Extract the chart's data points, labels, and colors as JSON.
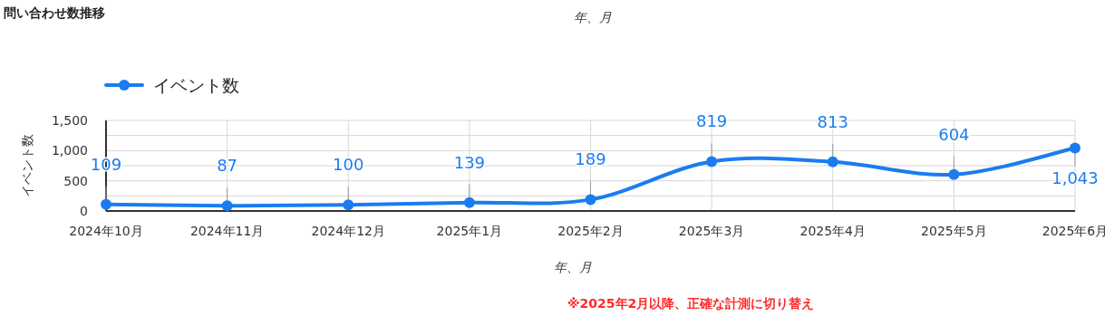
{
  "chart_data": {
    "type": "line",
    "title": "問い合わせ数推移",
    "xlabel": "年、月",
    "ylabel": "イベント数",
    "annotations": [
      "年、月",
      "※2025年2月以降、正確な計測に切り替え"
    ],
    "categories": [
      "2024年10月",
      "2024年11月",
      "2024年12月",
      "2025年1月",
      "2025年2月",
      "2025年3月",
      "2025年4月",
      "2025年5月",
      "2025年6月"
    ],
    "series": [
      {
        "name": "イベント数",
        "color": "#1a7cf0",
        "values": [
          109,
          87,
          100,
          139,
          189,
          819,
          813,
          604,
          1043
        ],
        "value_labels": [
          "109",
          "87",
          "100",
          "139",
          "189",
          "819",
          "813",
          "604",
          "1,043"
        ]
      }
    ],
    "ylim": [
      0,
      1500
    ],
    "yticks": [
      0,
      {
        "value": 250,
        "label": null
      },
      500,
      {
        "value": 750,
        "label": null
      },
      {
        "value": 1000,
        "label": "1,000"
      },
      {
        "value": 1250,
        "label": null
      },
      {
        "value": 1500,
        "label": "1,500"
      }
    ],
    "grid": true,
    "legend": "top left",
    "marker": "circle",
    "line_style": "solid"
  }
}
